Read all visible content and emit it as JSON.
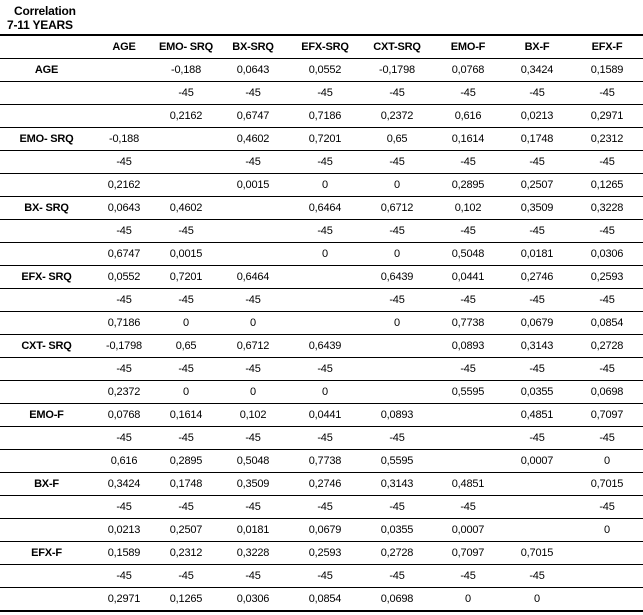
{
  "title": {
    "line1": "Correlation",
    "line2": "7-11 YEARS"
  },
  "colors": {
    "border": "#000000",
    "text": "#000000",
    "background": "#ffffff"
  },
  "table": {
    "corner_header": "",
    "columns": [
      "AGE",
      "EMO- SRQ",
      "BX-SRQ",
      "EFX-SRQ",
      "CXT-SRQ",
      "EMO-F",
      "BX-F",
      "EFX-F"
    ],
    "rows": [
      {
        "label": "AGE",
        "r": [
          "",
          "-0,188",
          "0,0643",
          "0,0552",
          "-0,1798",
          "0,0768",
          "0,3424",
          "0,1589"
        ],
        "n": [
          "",
          "-45",
          "-45",
          "-45",
          "-45",
          "-45",
          "-45",
          "-45"
        ],
        "p": [
          "",
          "0,2162",
          "0,6747",
          "0,7186",
          "0,2372",
          "0,616",
          "0,0213",
          "0,2971"
        ]
      },
      {
        "label": "EMO- SRQ",
        "r": [
          "-0,188",
          "",
          "0,4602",
          "0,7201",
          "0,65",
          "0,1614",
          "0,1748",
          "0,2312"
        ],
        "n": [
          "-45",
          "",
          "-45",
          "-45",
          "-45",
          "-45",
          "-45",
          "-45"
        ],
        "p": [
          "0,2162",
          "",
          "0,0015",
          "0",
          "0",
          "0,2895",
          "0,2507",
          "0,1265"
        ]
      },
      {
        "label": "BX- SRQ",
        "r": [
          "0,0643",
          "0,4602",
          "",
          "0,6464",
          "0,6712",
          "0,102",
          "0,3509",
          "0,3228"
        ],
        "n": [
          "-45",
          "-45",
          "",
          "-45",
          "-45",
          "-45",
          "-45",
          "-45"
        ],
        "p": [
          "0,6747",
          "0,0015",
          "",
          "0",
          "0",
          "0,5048",
          "0,0181",
          "0,0306"
        ]
      },
      {
        "label": "EFX- SRQ",
        "r": [
          "0,0552",
          "0,7201",
          "0,6464",
          "",
          "0,6439",
          "0,0441",
          "0,2746",
          "0,2593"
        ],
        "n": [
          "-45",
          "-45",
          "-45",
          "",
          "-45",
          "-45",
          "-45",
          "-45"
        ],
        "p": [
          "0,7186",
          "0",
          "0",
          "",
          "0",
          "0,7738",
          "0,0679",
          "0,0854"
        ]
      },
      {
        "label": "CXT- SRQ",
        "r": [
          "-0,1798",
          "0,65",
          "0,6712",
          "0,6439",
          "",
          "0,0893",
          "0,3143",
          "0,2728"
        ],
        "n": [
          "-45",
          "-45",
          "-45",
          "-45",
          "",
          "-45",
          "-45",
          "-45"
        ],
        "p": [
          "0,2372",
          "0",
          "0",
          "0",
          "",
          "0,5595",
          "0,0355",
          "0,0698"
        ]
      },
      {
        "label": "EMO-F",
        "r": [
          "0,0768",
          "0,1614",
          "0,102",
          "0,0441",
          "0,0893",
          "",
          "0,4851",
          "0,7097"
        ],
        "n": [
          "-45",
          "-45",
          "-45",
          "-45",
          "-45",
          "",
          "-45",
          "-45"
        ],
        "p": [
          "0,616",
          "0,2895",
          "0,5048",
          "0,7738",
          "0,5595",
          "",
          "0,0007",
          "0"
        ]
      },
      {
        "label": "BX-F",
        "r": [
          "0,3424",
          "0,1748",
          "0,3509",
          "0,2746",
          "0,3143",
          "0,4851",
          "",
          "0,7015"
        ],
        "n": [
          "-45",
          "-45",
          "-45",
          "-45",
          "-45",
          "-45",
          "",
          "-45"
        ],
        "p": [
          "0,0213",
          "0,2507",
          "0,0181",
          "0,0679",
          "0,0355",
          "0,0007",
          "",
          "0"
        ]
      },
      {
        "label": "EFX-F",
        "r": [
          "0,1589",
          "0,2312",
          "0,3228",
          "0,2593",
          "0,2728",
          "0,7097",
          "0,7015",
          ""
        ],
        "n": [
          "-45",
          "-45",
          "-45",
          "-45",
          "-45",
          "-45",
          "-45",
          ""
        ],
        "p": [
          "0,2971",
          "0,1265",
          "0,0306",
          "0,0854",
          "0,0698",
          "0",
          "0",
          ""
        ]
      }
    ]
  }
}
